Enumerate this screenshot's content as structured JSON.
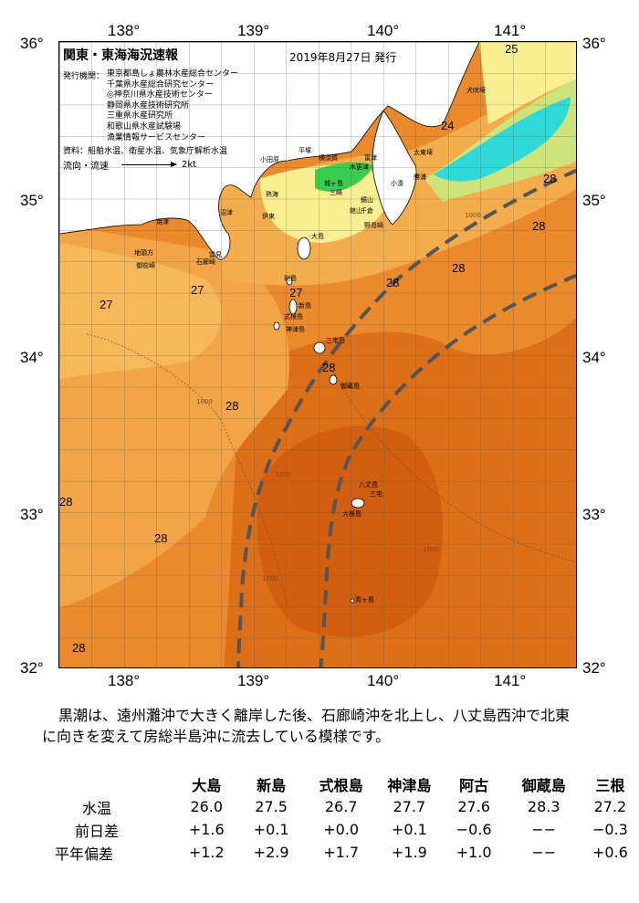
{
  "map": {
    "title": "関東・東海海況速報",
    "issued": "2019年8月27日 発行",
    "agency_label": "発行機関：",
    "agencies": [
      "東京都島しょ農林水産総合センター",
      "千葉県水産総合研究センター",
      "◎神奈川県水産技術センター",
      "静岡県水産技術研究所",
      "三重県水産研究所",
      "和歌山県水産試験場",
      "漁業情報サービスセンター"
    ],
    "data_sources": "資料：船舶水温、衛星水温、気象庁解析水温",
    "current_legend_label": "流向・流速",
    "current_legend_scale": "2kt",
    "lon_ticks": [
      "138°",
      "139°",
      "140°",
      "141°"
    ],
    "lat_ticks": [
      "36°",
      "35°",
      "34°",
      "33°",
      "32°"
    ],
    "contour_labels": [
      "25",
      "24",
      "28",
      "28",
      "28",
      "28",
      "27",
      "27",
      "27",
      "28",
      "28",
      "28",
      "28",
      "28"
    ],
    "place_labels": [
      "犬吠埼",
      "太東埼",
      "勝浦",
      "小湊",
      "鋸山",
      "館山",
      "野島崎",
      "木更津",
      "千倉",
      "富津",
      "横須賀",
      "平塚",
      "小田原",
      "三崎",
      "城ヶ島",
      "熱海",
      "伊東",
      "石廊崎",
      "沼津",
      "雲見",
      "焼津",
      "地頭方",
      "御前崎",
      "大島",
      "利島",
      "新島",
      "式根島",
      "三宅島",
      "神津島",
      "御蔵島",
      "八丈島",
      "三宅",
      "大根島",
      "青ヶ島"
    ],
    "isobath_labels": [
      "1000",
      "1000",
      "1000",
      "1000",
      "1000"
    ],
    "palette": {
      "yellow": "#fbf196",
      "green": "#39cc4f",
      "cyan": "#2fd9d8",
      "light_orange": "#f6b14b",
      "orange": "#ee8b2a",
      "dark_orange": "#d96512",
      "land": "#ffffff",
      "kuroshio_axis": "#555555"
    }
  },
  "summary": {
    "line1": "黒潮は、遠州灘沖で大きく離岸した後、石廊崎沖を北上し、八丈島西沖で北東",
    "line2": "に向きを変えて房総半島沖に流去している模様です。"
  },
  "table": {
    "stations": [
      "大島",
      "新島",
      "式根島",
      "神津島",
      "阿古",
      "御蔵島",
      "三根"
    ],
    "rows": [
      {
        "label": "水温",
        "values": [
          "26.0",
          "27.5",
          "26.7",
          "27.7",
          "27.6",
          "28.3",
          "27.2"
        ]
      },
      {
        "label": "前日差",
        "values": [
          "+1.6",
          "+0.1",
          "+0.0",
          "+0.1",
          "−0.6",
          "−−",
          "−0.3"
        ]
      },
      {
        "label": "平年偏差",
        "values": [
          "+1.2",
          "+2.9",
          "+1.7",
          "+1.9",
          "+1.0",
          "−−",
          "+0.6"
        ]
      }
    ]
  }
}
